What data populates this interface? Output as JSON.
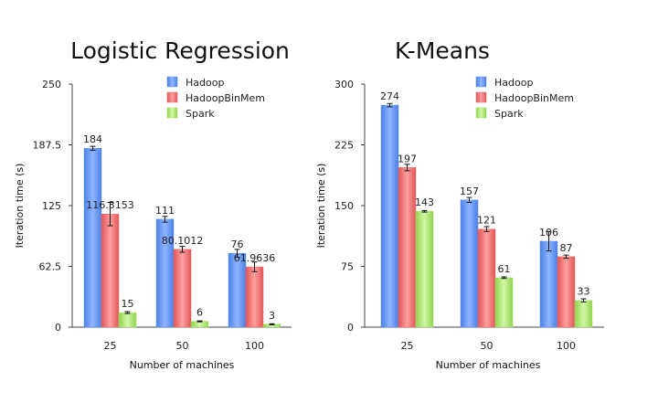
{
  "chart_data": [
    {
      "type": "bar",
      "title": "Logistic Regression",
      "xlabel": "Number of machines",
      "ylabel": "Iteration time (s)",
      "categories": [
        "25",
        "50",
        "100"
      ],
      "ylim": [
        0,
        250
      ],
      "yticks": [
        "0",
        "62.5",
        "125",
        "187.5",
        "250"
      ],
      "grid": false,
      "legend_position": "top-right",
      "series": [
        {
          "name": "Hadoop",
          "color": "#5b8ff0",
          "values": [
            184,
            111,
            76
          ],
          "labels": [
            "184",
            "111",
            "76"
          ],
          "err": [
            2,
            3,
            4
          ]
        },
        {
          "name": "HadoopBinMem",
          "color": "#ef6b6b",
          "values": [
            116.3153,
            80.1012,
            61.9636
          ],
          "labels": [
            "116.3153",
            "80.1012",
            "61.9636"
          ],
          "err": [
            12,
            3,
            5
          ]
        },
        {
          "name": "Spark",
          "color": "#a6e06a",
          "values": [
            15,
            6,
            3
          ],
          "labels": [
            "15",
            "6",
            "3"
          ],
          "err": [
            1,
            0.5,
            0.5
          ]
        }
      ]
    },
    {
      "type": "bar",
      "title": "K-Means",
      "xlabel": "Number of machines",
      "ylabel": "Iteration time (s)",
      "categories": [
        "25",
        "50",
        "100"
      ],
      "ylim": [
        0,
        300
      ],
      "yticks": [
        "0",
        "75",
        "150",
        "225",
        "300"
      ],
      "grid": false,
      "legend_position": "top-right",
      "series": [
        {
          "name": "Hadoop",
          "color": "#5b8ff0",
          "values": [
            274,
            157,
            106
          ],
          "labels": [
            "274",
            "157",
            "106"
          ],
          "err": [
            2,
            3,
            12
          ]
        },
        {
          "name": "HadoopBinMem",
          "color": "#ef6b6b",
          "values": [
            197,
            121,
            87
          ],
          "labels": [
            "197",
            "121",
            "87"
          ],
          "err": [
            4,
            3,
            2
          ]
        },
        {
          "name": "Spark",
          "color": "#a6e06a",
          "values": [
            143,
            61,
            33
          ],
          "labels": [
            "143",
            "61",
            "33"
          ],
          "err": [
            1,
            1,
            2
          ]
        }
      ]
    }
  ]
}
